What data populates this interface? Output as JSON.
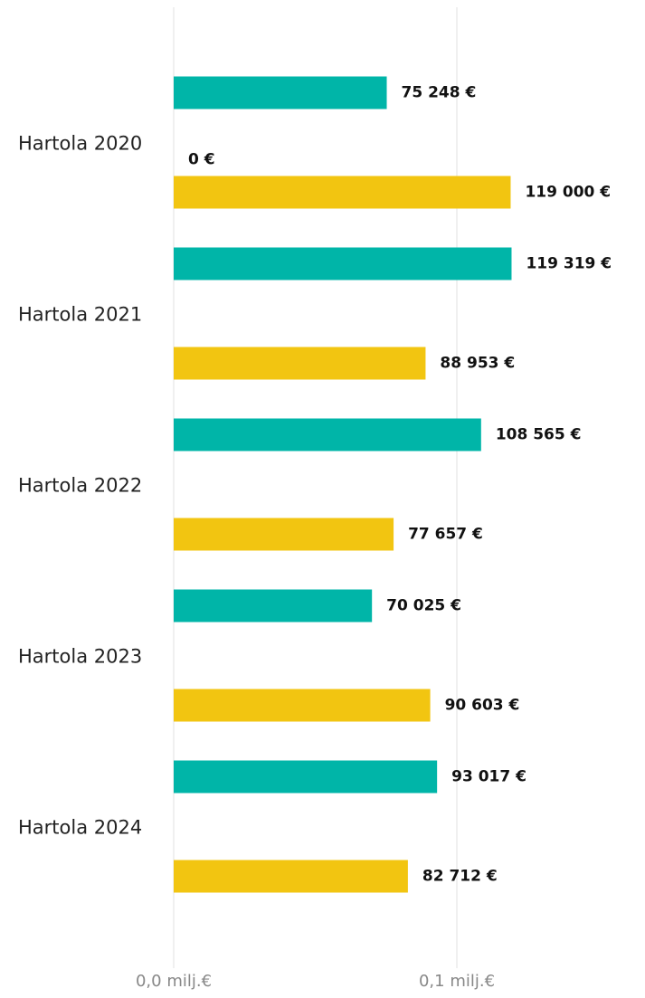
{
  "chart_data": {
    "type": "hbar",
    "categories": [
      "Hartola 2020",
      "Hartola 2021",
      "Hartola 2022",
      "Hartola 2023",
      "Hartola 2024"
    ],
    "series": [
      {
        "color": "#00b5a8",
        "values": [
          75248,
          119319,
          108565,
          70025,
          93017
        ],
        "value_labels": [
          "75 248 €",
          "119 319 €",
          "108 565 €",
          "70 025 €",
          "93 017 €"
        ]
      },
      {
        "color": "#7f7f7f",
        "values": [
          0,
          null,
          null,
          null,
          null
        ],
        "value_labels": [
          "0 €",
          null,
          null,
          null,
          null
        ]
      },
      {
        "color": "#f2c511",
        "values": [
          119000,
          88953,
          77657,
          90603,
          82712
        ],
        "value_labels": [
          "119 000 €",
          "88 953 €",
          "77 657 €",
          "90 603 €",
          "82 712 €"
        ]
      }
    ],
    "xlim": [
      0,
      166450
    ],
    "xticks": [
      {
        "value": 0,
        "label": "0,0 milj.€"
      },
      {
        "value": 100000,
        "label": "0,1 milj.€"
      }
    ],
    "grid": true
  }
}
